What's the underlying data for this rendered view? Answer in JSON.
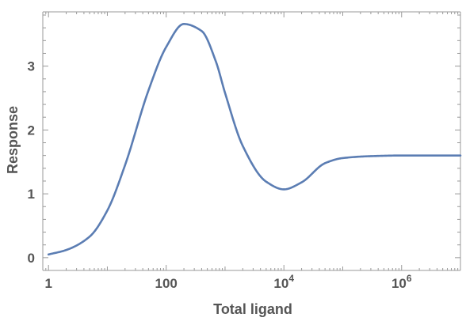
{
  "chart_data": {
    "type": "line",
    "title": "",
    "xlabel": "Total ligand",
    "ylabel": "Response",
    "x_scale": "log",
    "xlim": [
      0.8,
      10000000
    ],
    "ylim": [
      -0.2,
      3.85
    ],
    "grid": false,
    "color": "#5b7db3",
    "x_ticks": [
      {
        "value": 1,
        "label": "1",
        "exp": ""
      },
      {
        "value": 100,
        "label": "100",
        "exp": ""
      },
      {
        "value": 10000,
        "label": "10",
        "exp": "4"
      },
      {
        "value": 1000000,
        "label": "10",
        "exp": "6"
      }
    ],
    "y_ticks": [
      {
        "value": 0,
        "label": "0"
      },
      {
        "value": 1,
        "label": "1"
      },
      {
        "value": 2,
        "label": "2"
      },
      {
        "value": 3,
        "label": "3"
      }
    ],
    "series": [
      {
        "x": [
          1,
          2,
          5,
          10,
          20,
          50,
          100,
          200,
          400,
          700,
          1000,
          2000,
          5000,
          10000,
          20000,
          50000,
          100000,
          300000,
          1000000,
          10000000
        ],
        "y": [
          0.05,
          0.12,
          0.33,
          0.74,
          1.45,
          2.62,
          3.3,
          3.66,
          3.55,
          3.07,
          2.58,
          1.75,
          1.19,
          1.07,
          1.18,
          1.48,
          1.56,
          1.59,
          1.6,
          1.6
        ]
      }
    ]
  }
}
